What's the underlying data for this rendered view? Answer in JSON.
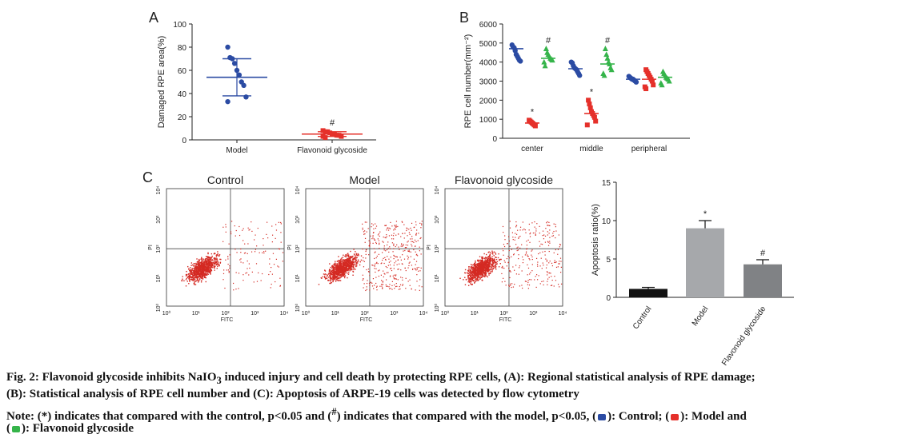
{
  "chart_data": [
    {
      "type": "scatter",
      "panel_label": "A",
      "ylabel": "Damaged RPE area(%)",
      "categories": [
        "Model",
        "Flavonoid glycoside"
      ],
      "ylim": [
        0,
        100
      ],
      "yticks": [
        "0",
        "20",
        "40",
        "60",
        "80",
        "100"
      ],
      "series": [
        {
          "name": "Model",
          "color": "#2b4ba3",
          "marker": "circle",
          "values": [
            80,
            71,
            70,
            66,
            60,
            56,
            50,
            47,
            37,
            33
          ],
          "mean": 54,
          "sd": 16,
          "annotation": ""
        },
        {
          "name": "Flavonoid glycoside",
          "color": "#e5302a",
          "marker": "square",
          "values": [
            8,
            7,
            7,
            6,
            5,
            5,
            4,
            4,
            3,
            3,
            2
          ],
          "mean": 5,
          "sd": 2,
          "annotation": "#"
        }
      ]
    },
    {
      "type": "scatter",
      "panel_label": "B",
      "ylabel": "RPE cell number(mm⁻²)",
      "categories": [
        "center",
        "middle",
        "peripheral"
      ],
      "ylim": [
        0,
        6000
      ],
      "yticks": [
        "0",
        "1000",
        "2000",
        "3000",
        "4000",
        "5000",
        "6000"
      ],
      "series": [
        {
          "name": "Control",
          "color": "#2b4ba3",
          "marker": "circle",
          "values": [
            [
              4900,
              4800,
              4750,
              4600,
              4400,
              4300,
              4200,
              4100,
              4050
            ],
            [
              4000,
              3950,
              3800,
              3700,
              3650,
              3600,
              3500,
              3400,
              3300
            ],
            [
              3250,
              3200,
              3150,
              3100,
              3100,
              3050,
              3000,
              2950
            ]
          ],
          "mean": [
            4700,
            3650,
            3100
          ],
          "annotations": [
            "",
            "",
            ""
          ]
        },
        {
          "name": "Model",
          "color": "#e5302a",
          "marker": "square",
          "values": [
            [
              950,
              900,
              850,
              800,
              750,
              700,
              650
            ],
            [
              2000,
              1800,
              1600,
              1400,
              1300,
              1200,
              1100,
              900,
              700
            ],
            [
              3600,
              3500,
              3400,
              3300,
              3200,
              3100,
              3000,
              2800,
              2700,
              2600
            ]
          ],
          "mean": [
            800,
            1300,
            3100
          ],
          "annotations": [
            "*",
            "*",
            ""
          ]
        },
        {
          "name": "Flavonoid glycoside",
          "color": "#35b44a",
          "marker": "triangle",
          "values": [
            [
              4700,
              4500,
              4400,
              4300,
              4200,
              4150,
              4100,
              4000,
              3800
            ],
            [
              4700,
              4400,
              4200,
              4000,
              3900,
              3700,
              3600,
              3400,
              3300
            ],
            [
              3500,
              3400,
              3300,
              3200,
              3150,
              3100,
              3000,
              2900,
              2800
            ]
          ],
          "mean": [
            4200,
            3900,
            3200
          ],
          "annotations": [
            "#",
            "#",
            ""
          ]
        }
      ]
    },
    {
      "type": "scatter",
      "subtype": "flow-cytometry",
      "panel_label": "C",
      "titles": [
        "Control",
        "Model",
        "Flavonoid glycoside"
      ],
      "xlabel": "FITC",
      "ylabel": "PI",
      "xticks": [
        "10⁰",
        "10¹",
        "10²",
        "10³",
        "10⁴"
      ],
      "yticks": [
        "10⁰",
        "10¹",
        "10²",
        "10³",
        "10⁴"
      ],
      "gate": {
        "x": 150,
        "y": 90
      },
      "color": "#d42a23"
    },
    {
      "type": "bar",
      "ylabel": "Apoptosis ratio(%)",
      "categories": [
        "Control",
        "Model",
        "Flavonoid glycoside"
      ],
      "values": [
        1.1,
        9.0,
        4.3
      ],
      "errors": [
        0.2,
        1.0,
        0.6
      ],
      "colors": [
        "#111111",
        "#a6a8ab",
        "#808285"
      ],
      "annotations": [
        "",
        "*",
        "#"
      ],
      "ylim": [
        0,
        15
      ],
      "yticks": [
        "0",
        "5",
        "10",
        "15"
      ]
    }
  ],
  "caption": {
    "line1_a": "Fig. 2: Flavonoid glycoside inhibits NaIO",
    "line1_sub": "3",
    "line1_b": " induced injury and cell death by protecting RPE cells, (A): Regional statistical analysis of RPE damage;",
    "line2": "(B): Statistical analysis of RPE cell number and (C): Apoptosis of ARPE-19 cells was detected by flow cytometry",
    "line3_a": "Note: (*) indicates that compared with the control, p<0.05 and (",
    "line3_sup": "#",
    "line3_b": ") indicates that compared with the model, p<0.05, (",
    "line3_c": "): Control; (",
    "line3_d": "): Model and",
    "line4_a": "(",
    "line4_b": "): Flavonoid glycoside",
    "swatch_colors": [
      "#2b4ba3",
      "#e5302a",
      "#35b44a"
    ]
  }
}
